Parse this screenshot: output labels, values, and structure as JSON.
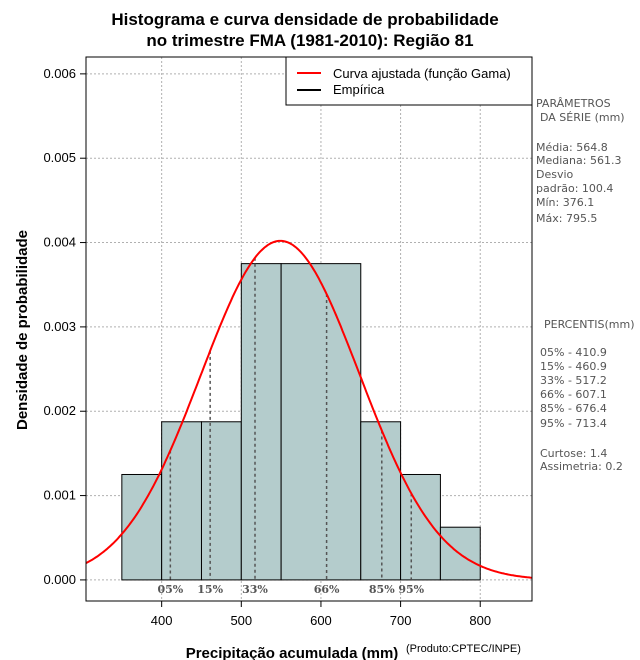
{
  "chart_data": {
    "type": "bar",
    "title_line1": "Histograma e curva densidade de probabilidade",
    "title_line2": "no trimestre FMA (1981-2010): Região 81",
    "xlabel": "Precipitação acumulada (mm)",
    "ylabel": "Densidade de probabilidade",
    "credit": "(Produto:CPTEC/INPE)",
    "xlim": [
      305,
      865
    ],
    "ylim": [
      -0.00025,
      0.0062
    ],
    "x_ticks": [
      400,
      500,
      600,
      700,
      800
    ],
    "x_tick_labels": [
      "400",
      "500",
      "600",
      "700",
      "800"
    ],
    "y_ticks": [
      0,
      0.001,
      0.002,
      0.003,
      0.004,
      0.005,
      0.006
    ],
    "y_tick_labels": [
      "0.000",
      "0.001",
      "0.002",
      "0.003",
      "0.004",
      "0.005",
      "0.006"
    ],
    "grid": true,
    "bins": [
      {
        "start": 350,
        "end": 400,
        "density": 0.00125
      },
      {
        "start": 400,
        "end": 450,
        "density": 0.001875
      },
      {
        "start": 450,
        "end": 500,
        "density": 0.001875
      },
      {
        "start": 500,
        "end": 550,
        "density": 0.00375
      },
      {
        "start": 550,
        "end": 650,
        "density": 0.00375
      },
      {
        "start": 650,
        "end": 700,
        "density": 0.001875
      },
      {
        "start": 700,
        "end": 750,
        "density": 0.00125
      },
      {
        "start": 750,
        "end": 800,
        "density": 0.000625
      }
    ],
    "bar_color": "#b4cccc",
    "curve_color": "#ff0000",
    "curve": {
      "mean": 549,
      "sd": 99.5,
      "peak": 0.00402
    },
    "legend": {
      "position": "top-right",
      "entries": [
        {
          "label": "Curva ajustada (função Gama)",
          "color": "#ff0000"
        },
        {
          "label": "Empírica",
          "color": "#000000"
        }
      ]
    },
    "percentile_markers": [
      {
        "label": "05%",
        "value": 410.9
      },
      {
        "label": "15%",
        "value": 460.9
      },
      {
        "label": "33%",
        "value": 517.2
      },
      {
        "label": "66%",
        "value": 607.1
      },
      {
        "label": "85%",
        "value": 676.4
      },
      {
        "label": "95%",
        "value": 713.4
      }
    ]
  },
  "side_panel": {
    "params_heading_1": "PARÂMETROS",
    "params_heading_2": "DA SÉRIE (mm)",
    "media": "Média:  564.8",
    "mediana": "Mediana:  561.3",
    "desvio_1": "Desvio",
    "desvio_2": "padrão:  100.4",
    "min": "Mín:  376.1",
    "max": "Máx:  795.5",
    "percentis_heading": "PERCENTIS(mm)",
    "p05": "05% -  410.9",
    "p15": "15% -  460.9",
    "p33": "33% -  517.2",
    "p66": "66% -  607.1",
    "p85": "85% -  676.4",
    "p95": "95% -  713.4",
    "curtose": "Curtose:  1.4",
    "assimetria": "Assimetria:  0.2"
  }
}
